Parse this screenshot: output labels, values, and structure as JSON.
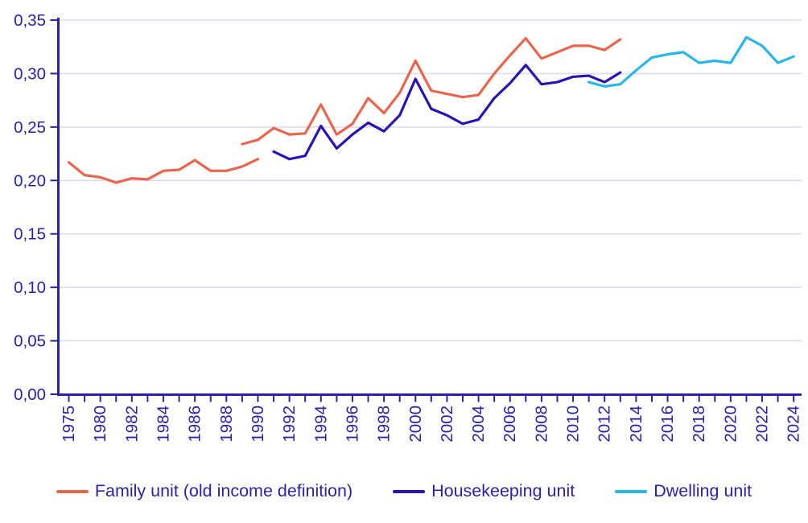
{
  "chart_data": {
    "type": "line",
    "title": "",
    "background": "#FFFFFF",
    "axis_color": "#2B22A7",
    "grid": {
      "horizontal": true,
      "vertical": false,
      "color": "#DBDBF2"
    },
    "y_axis": {
      "min": 0,
      "max": 0.35,
      "step": 0.05,
      "decimal_separator": ",",
      "tick_labels": [
        "0,00",
        "0,05",
        "0,10",
        "0,15",
        "0,20",
        "0,25",
        "0,30",
        "0,35"
      ]
    },
    "x_axis": {
      "label_rotation_deg": -90,
      "slots": [
        "1975",
        "1977",
        "1980",
        "1981",
        "1982",
        "1983",
        "1984",
        "1985",
        "1986",
        "1987",
        "1988",
        "1989",
        "1990",
        "1991",
        "1992",
        "1993",
        "1994",
        "1995",
        "1996",
        "1997",
        "1998",
        "1999",
        "2000",
        "2001",
        "2002",
        "2003",
        "2004",
        "2005",
        "2006",
        "2007",
        "2008",
        "2009",
        "2010",
        "2011",
        "2012",
        "2013",
        "2014",
        "2015",
        "2016",
        "2017",
        "2018",
        "2019",
        "2020",
        "2021",
        "2022",
        "2023",
        "2024"
      ],
      "visible_tick_labels": [
        "1975",
        "1980",
        "1982",
        "1984",
        "1986",
        "1988",
        "1990",
        "1992",
        "1994",
        "1996",
        "1998",
        "2000",
        "2002",
        "2004",
        "2006",
        "2008",
        "2010",
        "2012",
        "2014",
        "2016",
        "2018",
        "2020",
        "2022",
        "2024"
      ]
    },
    "series": [
      {
        "name": "Family unit (old income definition)",
        "key": "family-unit",
        "color": "#E9654E",
        "segments": [
          {
            "years": [
              "1975",
              "1977",
              "1980",
              "1981",
              "1982",
              "1983",
              "1984",
              "1985",
              "1986",
              "1987",
              "1988",
              "1989",
              "1990"
            ],
            "values": [
              0.217,
              0.205,
              0.203,
              0.198,
              0.202,
              0.201,
              0.209,
              0.21,
              0.219,
              0.209,
              0.209,
              0.213,
              0.22
            ]
          },
          {
            "years": [
              "1989",
              "1990",
              "1991",
              "1992",
              "1993",
              "1994",
              "1995",
              "1996",
              "1997",
              "1998",
              "1999",
              "2000",
              "2001",
              "2002",
              "2003",
              "2004",
              "2005",
              "2006",
              "2007",
              "2008",
              "2009",
              "2010",
              "2011",
              "2012",
              "2013"
            ],
            "values": [
              0.234,
              0.238,
              0.249,
              0.243,
              0.244,
              0.271,
              0.243,
              0.253,
              0.277,
              0.263,
              0.282,
              0.312,
              0.284,
              0.281,
              0.278,
              0.28,
              0.3,
              0.317,
              0.333,
              0.314,
              0.32,
              0.326,
              0.326,
              0.322,
              0.332
            ]
          }
        ]
      },
      {
        "name": "Housekeeping unit",
        "key": "housekeeping-unit",
        "color": "#2B12B4",
        "segments": [
          {
            "years": [
              "1991",
              "1992",
              "1993",
              "1994",
              "1995",
              "1996",
              "1997",
              "1998",
              "1999",
              "2000",
              "2001",
              "2002",
              "2003",
              "2004",
              "2005",
              "2006",
              "2007",
              "2008",
              "2009",
              "2010",
              "2011",
              "2012",
              "2013"
            ],
            "values": [
              0.227,
              0.22,
              0.223,
              0.251,
              0.23,
              0.243,
              0.254,
              0.246,
              0.261,
              0.295,
              0.267,
              0.261,
              0.253,
              0.257,
              0.277,
              0.291,
              0.308,
              0.29,
              0.292,
              0.297,
              0.298,
              0.292,
              0.301
            ]
          }
        ]
      },
      {
        "name": "Dwelling unit",
        "key": "dwelling-unit",
        "color": "#29B6E8",
        "segments": [
          {
            "years": [
              "2011",
              "2012",
              "2013",
              "2014",
              "2015",
              "2016",
              "2017",
              "2018",
              "2019",
              "2020",
              "2021",
              "2022",
              "2023",
              "2024"
            ],
            "values": [
              0.292,
              0.288,
              0.29,
              0.303,
              0.315,
              0.318,
              0.32,
              0.31,
              0.312,
              0.31,
              0.334,
              0.326,
              0.31,
              0.316
            ]
          }
        ]
      }
    ],
    "legend": {
      "position": "bottom",
      "items": [
        "Family unit (old income definition)",
        "Housekeeping unit",
        "Dwelling unit"
      ]
    }
  }
}
